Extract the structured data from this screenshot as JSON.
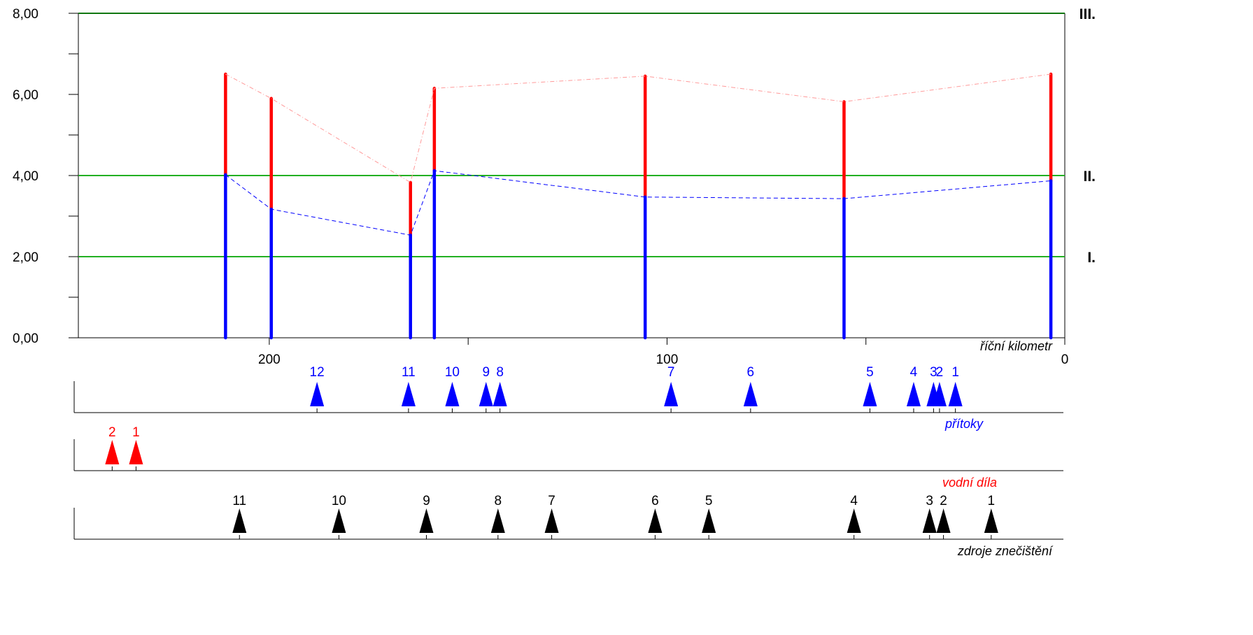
{
  "chart_data": {
    "type": "line",
    "x_axis": {
      "label": "říční kilometr",
      "range": [
        248,
        0
      ],
      "ticks": [
        200,
        100,
        0
      ],
      "tick_labels": [
        "200",
        "100",
        "0"
      ],
      "minor_ticks": [
        150,
        50
      ]
    },
    "y_axis": {
      "range": [
        0,
        8
      ],
      "ticks": [
        0,
        2,
        4,
        6,
        8
      ],
      "tick_labels": [
        "0,00",
        "2,00",
        "4,00",
        "6,00",
        "8,00"
      ],
      "minor_ticks": [
        1,
        3,
        5,
        7
      ]
    },
    "class_lines": [
      {
        "label": "I.",
        "value": 2,
        "color": "#22b022"
      },
      {
        "label": "II.",
        "value": 4,
        "color": "#22b022"
      },
      {
        "label": "III.",
        "value": 8,
        "color": "#117711"
      }
    ],
    "stations_km": [
      211,
      199.5,
      164.5,
      158.5,
      105.5,
      55.5,
      3.5
    ],
    "series": [
      {
        "values": [
          4.02,
          3.17,
          2.53,
          4.12,
          3.47,
          3.43,
          3.87
        ],
        "color": "#0000ff"
      },
      {
        "values": [
          6.5,
          5.9,
          3.83,
          6.15,
          6.45,
          5.82,
          6.5
        ],
        "color": "#ff0000"
      }
    ],
    "marker_rows": [
      {
        "label": "přítoky",
        "color": "#0000ff",
        "markers": [
          {
            "label": "12",
            "km": 188
          },
          {
            "label": "11",
            "km": 165
          },
          {
            "label": "10",
            "km": 154
          },
          {
            "label": "9",
            "km": 145.5
          },
          {
            "label": "8",
            "km": 142
          },
          {
            "label": "7",
            "km": 99
          },
          {
            "label": "6",
            "km": 79
          },
          {
            "label": "5",
            "km": 49
          },
          {
            "label": "4",
            "km": 38
          },
          {
            "label": "3",
            "km": 33
          },
          {
            "label": "2",
            "km": 31.5
          },
          {
            "label": "1",
            "km": 27.5
          }
        ]
      },
      {
        "label": "vodní díla",
        "color": "#ff0000",
        "markers": [
          {
            "label": "2",
            "km": 239.5
          },
          {
            "label": "1",
            "km": 233.5
          }
        ]
      },
      {
        "label": "zdroje znečištění",
        "color": "#000000",
        "markers": [
          {
            "label": "11",
            "km": 207.5
          },
          {
            "label": "10",
            "km": 182.5
          },
          {
            "label": "9",
            "km": 160.5
          },
          {
            "label": "8",
            "km": 142.5
          },
          {
            "label": "7",
            "km": 129
          },
          {
            "label": "6",
            "km": 103
          },
          {
            "label": "5",
            "km": 89.5
          },
          {
            "label": "4",
            "km": 53
          },
          {
            "label": "3",
            "km": 34
          },
          {
            "label": "2",
            "km": 30.5
          },
          {
            "label": "1",
            "km": 18.5
          }
        ]
      }
    ]
  }
}
